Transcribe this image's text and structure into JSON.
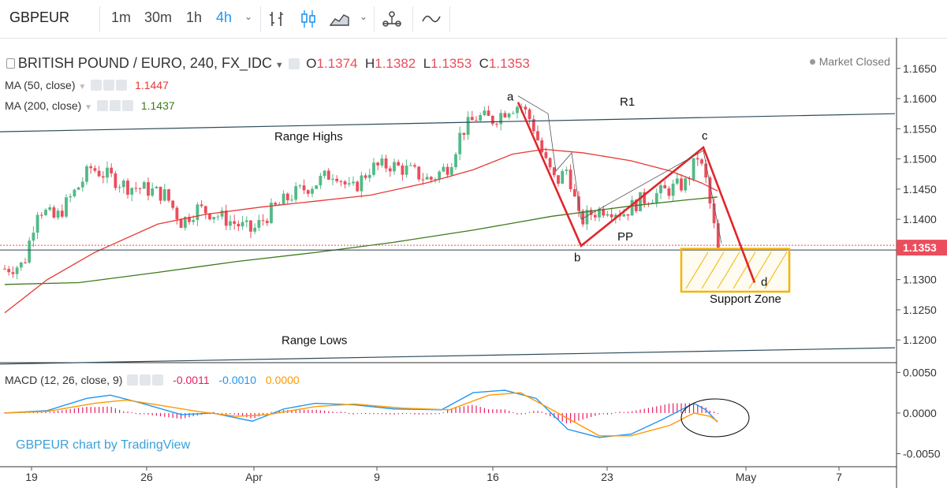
{
  "toolbar": {
    "symbol": "GBPEUR",
    "intervals": [
      {
        "label": "1m",
        "active": false
      },
      {
        "label": "30m",
        "active": false
      },
      {
        "label": "1h",
        "active": false
      },
      {
        "label": "4h",
        "active": true
      }
    ],
    "icons": [
      "bar-chart-icon",
      "candlestick-icon",
      "area-chart-icon",
      "compare-icon",
      "indicators-icon"
    ]
  },
  "legend": {
    "series_title": "BRITISH POUND / EURO, 240, FX_IDC",
    "ohlc": {
      "o_label": "O",
      "o": "1.1374",
      "h_label": "H",
      "h": "1.1382",
      "l_label": "L",
      "l": "1.1353",
      "c_label": "C",
      "c": "1.1353"
    },
    "ma50_label": "MA (50, close)",
    "ma50_value": "1.1447",
    "ma200_label": "MA (200, close)",
    "ma200_value": "1.1437",
    "macd_label": "MACD (12, 26, close, 9)",
    "macd_values": [
      "-0.0011",
      "-0.0010",
      "0.0000"
    ]
  },
  "market_status": "Market Closed",
  "watermark": "GBPEUR chart by TradingView",
  "colors": {
    "up": "#53b987",
    "down": "#eb4d5c",
    "ma50": "#e53935",
    "ma200": "#3d7a1c",
    "macd": "#2196f3",
    "signal": "#ff9800",
    "hist": "#e91e63",
    "pattern": "#e0262b",
    "zone": "#f5b400",
    "price_badge": "#eb4d5c",
    "watermark": "#3aa0d8"
  },
  "chart_data": {
    "type": "candlestick",
    "symbol": "GBPEUR",
    "ylim": [
      1.1165,
      1.1685
    ],
    "y_ticks": [
      "1.1650",
      "1.1600",
      "1.1550",
      "1.1500",
      "1.1450",
      "1.1400",
      "1.1350",
      "1.1300",
      "1.1250",
      "1.1200"
    ],
    "macd_ylim": [
      -0.0066,
      0.006
    ],
    "macd_ticks": [
      "0.0050",
      "0.0000",
      "-0.0050"
    ],
    "x_labels": [
      {
        "label": "19",
        "x": 40
      },
      {
        "label": "26",
        "x": 186
      },
      {
        "label": "Apr",
        "x": 322
      },
      {
        "label": "9",
        "x": 478
      },
      {
        "label": "16",
        "x": 625
      },
      {
        "label": "23",
        "x": 770
      },
      {
        "label": "May",
        "x": 946
      },
      {
        "label": "7",
        "x": 1064
      }
    ],
    "last_price": "1.1353",
    "anchors": [
      [
        6,
        1.1318
      ],
      [
        30,
        1.1325
      ],
      [
        48,
        1.142
      ],
      [
        70,
        1.14
      ],
      [
        100,
        1.1455
      ],
      [
        115,
        1.1485
      ],
      [
        140,
        1.147
      ],
      [
        160,
        1.1455
      ],
      [
        185,
        1.145
      ],
      [
        210,
        1.144
      ],
      [
        230,
        1.1395
      ],
      [
        250,
        1.1418
      ],
      [
        270,
        1.141
      ],
      [
        295,
        1.1395
      ],
      [
        320,
        1.138
      ],
      [
        345,
        1.1415
      ],
      [
        370,
        1.144
      ],
      [
        400,
        1.146
      ],
      [
        425,
        1.148
      ],
      [
        445,
        1.1445
      ],
      [
        470,
        1.1485
      ],
      [
        495,
        1.149
      ],
      [
        520,
        1.148
      ],
      [
        545,
        1.1465
      ],
      [
        570,
        1.149
      ],
      [
        585,
        1.1545
      ],
      [
        605,
        1.157
      ],
      [
        625,
        1.1565
      ],
      [
        645,
        1.1585
      ],
      [
        660,
        1.159
      ],
      [
        675,
        1.156
      ],
      [
        690,
        1.15
      ],
      [
        705,
        1.146
      ],
      [
        720,
        1.1485
      ],
      [
        735,
        1.1395
      ],
      [
        750,
        1.141
      ],
      [
        770,
        1.142
      ],
      [
        790,
        1.141
      ],
      [
        810,
        1.143
      ],
      [
        830,
        1.144
      ],
      [
        850,
        1.145
      ],
      [
        870,
        1.146
      ],
      [
        885,
        1.1505
      ],
      [
        895,
        1.1465
      ],
      [
        905,
        1.139
      ],
      [
        911,
        1.1353
      ]
    ],
    "ma50": [
      [
        6,
        1.1245
      ],
      [
        60,
        1.13
      ],
      [
        120,
        1.1345
      ],
      [
        200,
        1.1392
      ],
      [
        260,
        1.1408
      ],
      [
        330,
        1.142
      ],
      [
        400,
        1.143
      ],
      [
        470,
        1.144
      ],
      [
        540,
        1.146
      ],
      [
        600,
        1.1482
      ],
      [
        650,
        1.1508
      ],
      [
        690,
        1.1516
      ],
      [
        740,
        1.151
      ],
      [
        800,
        1.1497
      ],
      [
        850,
        1.148
      ],
      [
        890,
        1.146
      ],
      [
        910,
        1.1447
      ]
    ],
    "ma200": [
      [
        6,
        1.1292
      ],
      [
        100,
        1.1295
      ],
      [
        200,
        1.1312
      ],
      [
        300,
        1.133
      ],
      [
        400,
        1.1345
      ],
      [
        500,
        1.1362
      ],
      [
        600,
        1.1382
      ],
      [
        700,
        1.1405
      ],
      [
        800,
        1.1422
      ],
      [
        870,
        1.1432
      ],
      [
        910,
        1.1437
      ]
    ],
    "lines": [
      {
        "name": "R1",
        "p1": [
          0,
          1.1545
        ],
        "p2": [
          1135,
          1.1575
        ]
      },
      {
        "name": "Range Lows",
        "p1": [
          0,
          1.116
        ],
        "p2": [
          1135,
          1.1187
        ]
      }
    ],
    "pattern_points": [
      {
        "label": "a",
        "x": 657,
        "y": 1.1594
      },
      {
        "label": "b",
        "x": 737,
        "y": 1.1356
      },
      {
        "label": "c",
        "x": 892,
        "y": 1.1519
      },
      {
        "label": "d",
        "x": 957,
        "y": 1.1295
      }
    ],
    "zone": {
      "x1": 864,
      "x2": 1001,
      "y1": 1.1351,
      "y2": 1.128
    },
    "annotations": [
      {
        "text": "R1",
        "x": 786,
        "y": 1.1588
      },
      {
        "text": "Range Highs",
        "x": 348,
        "y": 1.1531
      },
      {
        "text": "Range Lows",
        "x": 357,
        "y": 1.1193
      },
      {
        "text": "PP",
        "x": 783,
        "y": 1.1365
      },
      {
        "text": "Support Zone",
        "x": 900,
        "y": 1.1262
      },
      {
        "text": "a",
        "x": 643,
        "y": 1.1597
      },
      {
        "text": "b",
        "x": 728,
        "y": 1.133
      },
      {
        "text": "c",
        "x": 890,
        "y": 1.1532
      },
      {
        "text": "d",
        "x": 965,
        "y": 1.129
      }
    ],
    "macd": {
      "macd_line": [
        [
          6,
          0.0
        ],
        [
          60,
          0.0003
        ],
        [
          110,
          0.0018
        ],
        [
          140,
          0.0022
        ],
        [
          180,
          0.0012
        ],
        [
          230,
          -0.0002
        ],
        [
          270,
          0.0
        ],
        [
          320,
          -0.001
        ],
        [
          360,
          0.0005
        ],
        [
          400,
          0.0012
        ],
        [
          450,
          0.001
        ],
        [
          500,
          0.0005
        ],
        [
          560,
          0.0004
        ],
        [
          600,
          0.0025
        ],
        [
          640,
          0.0028
        ],
        [
          680,
          0.0018
        ],
        [
          720,
          -0.002
        ],
        [
          760,
          -0.003
        ],
        [
          800,
          -0.0026
        ],
        [
          840,
          -0.0008
        ],
        [
          880,
          0.0012
        ],
        [
          895,
          0.0004
        ],
        [
          910,
          -0.0011
        ]
      ],
      "signal_line": [
        [
          6,
          0.0
        ],
        [
          60,
          0.0002
        ],
        [
          120,
          0.0012
        ],
        [
          160,
          0.0016
        ],
        [
          200,
          0.001
        ],
        [
          250,
          0.0002
        ],
        [
          300,
          -0.0004
        ],
        [
          340,
          -0.0002
        ],
        [
          400,
          0.0008
        ],
        [
          450,
          0.0011
        ],
        [
          510,
          0.0006
        ],
        [
          570,
          0.0004
        ],
        [
          620,
          0.0022
        ],
        [
          660,
          0.0025
        ],
        [
          700,
          0.0004
        ],
        [
          760,
          -0.0028
        ],
        [
          800,
          -0.0028
        ],
        [
          850,
          -0.0015
        ],
        [
          880,
          0.0
        ],
        [
          900,
          -0.0004
        ],
        [
          910,
          -0.001
        ]
      ]
    }
  }
}
